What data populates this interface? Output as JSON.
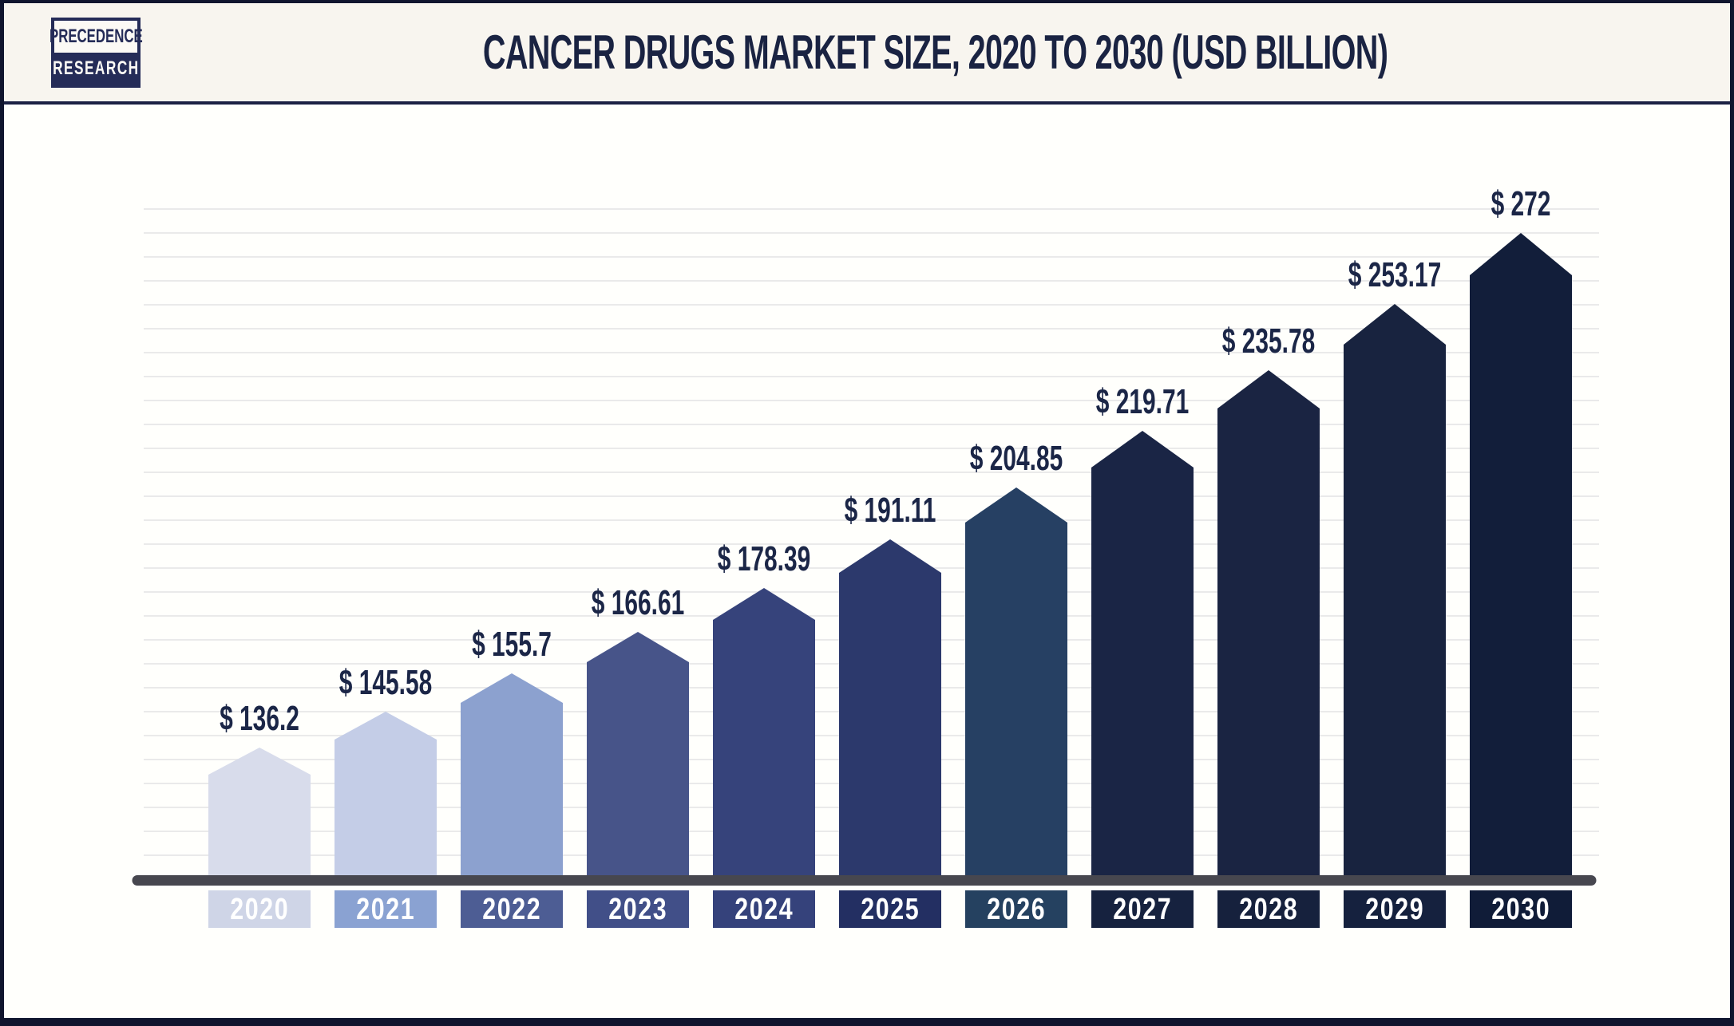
{
  "header": {
    "logo": {
      "line1": "PRECEDENCE",
      "line2": "RESEARCH"
    },
    "title": "CANCER DRUGS MARKET SIZE, 2020 TO 2030 (USD BILLION)"
  },
  "chart_data": {
    "type": "bar",
    "title": "CANCER DRUGS MARKET SIZE, 2020 TO 2030 (USD BILLION)",
    "unit": "USD Billion",
    "categories": [
      "2020",
      "2021",
      "2022",
      "2023",
      "2024",
      "2025",
      "2026",
      "2027",
      "2028",
      "2029",
      "2030"
    ],
    "values": [
      136.2,
      145.58,
      155.7,
      166.61,
      178.39,
      191.11,
      204.85,
      219.71,
      235.78,
      253.17,
      272
    ],
    "value_labels": [
      "$ 136.2",
      "$ 145.58",
      "$ 155.7",
      "$ 166.61",
      "$ 178.39",
      "$ 191.11",
      "$ 204.85",
      "$ 219.71",
      "$ 235.78",
      "$ 253.17",
      "$ 272"
    ],
    "bar_colors": [
      "#D8DCEB",
      "#C4CDE7",
      "#8CA1CF",
      "#475489",
      "#36437B",
      "#2C396C",
      "#264063",
      "#1A2545",
      "#1A2442",
      "#18233F",
      "#121E3A"
    ],
    "tick_box_colors": [
      "#CFD5E7",
      "#8AA2D2",
      "#4D5D94",
      "#414F88",
      "#35427B",
      "#232F62",
      "#254160",
      "#16223F",
      "#16213D",
      "#15213E",
      "#101C38"
    ],
    "bar_shape": "pentagon-top",
    "axis": {
      "y_axis_labels": "none",
      "baseline_value": 102.5,
      "top_value": 272,
      "gridlines": "horizontal",
      "legend": "none"
    },
    "colors": {
      "frame": "#10152E",
      "header_bg": "#F8F5EF",
      "header_rule": "#1B2144",
      "plot_bg": "#FFFFFC",
      "grid_line": "#EAEAEA",
      "axis_line": "#47474F",
      "title_text": "#1A2342",
      "value_label_text": "#1B2647",
      "year_text": "#FFFFFF"
    }
  }
}
